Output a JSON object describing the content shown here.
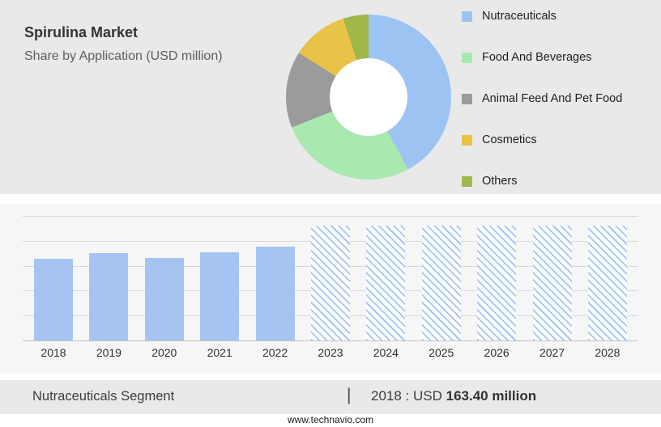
{
  "header": {
    "title": "Spirulina Market",
    "subtitle": "Share by Application (USD million)"
  },
  "chart_data": [
    {
      "type": "pie",
      "donut": true,
      "title": "Share by Application (USD million)",
      "labels": [
        "Nutraceuticals",
        "Food And Beverages",
        "Animal Feed And Pet Food",
        "Cosmetics",
        "Others"
      ],
      "values": [
        42,
        27,
        15,
        11,
        5
      ],
      "unit": "percent of donut arc, estimated",
      "colors": [
        "#9dc3f3",
        "#a9e8b0",
        "#9b9b9b",
        "#e9c349",
        "#a0b84a"
      ],
      "legend_position": "right"
    },
    {
      "type": "bar",
      "title": "Nutraceuticals segment by year (USD million)",
      "categories": [
        "2018",
        "2019",
        "2020",
        "2021",
        "2022",
        "2023",
        "2024",
        "2025",
        "2026",
        "2027",
        "2028"
      ],
      "series": [
        {
          "name": "Nutraceuticals",
          "values": [
            163.4,
            175,
            165,
            177,
            188,
            230,
            230,
            230,
            230,
            230,
            230
          ]
        }
      ],
      "solid_years": [
        "2018",
        "2019",
        "2020",
        "2021",
        "2022"
      ],
      "hatched_from": "2023",
      "ylim": [
        0,
        250
      ],
      "grid": true,
      "bar_color": "#a5c4f2"
    }
  ],
  "footer": {
    "segment": "Nutraceuticals Segment",
    "separator": "|",
    "value_prefix": "2018 : USD ",
    "value": "163.40 million",
    "url": "www.technavio.com"
  }
}
